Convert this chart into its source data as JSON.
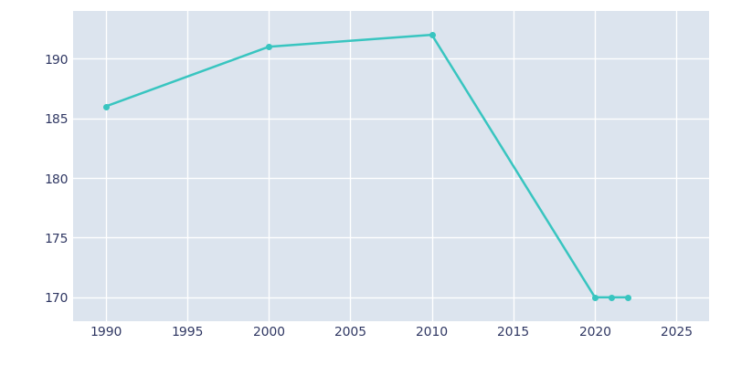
{
  "years": [
    1990,
    2000,
    2010,
    2020,
    2021,
    2022
  ],
  "population": [
    186,
    191,
    192,
    170,
    170,
    170
  ],
  "line_color": "#38c5c0",
  "marker": "o",
  "marker_size": 4,
  "line_width": 1.8,
  "bg_color": "#ffffff",
  "plot_bg_color": "#dce4ee",
  "grid_color": "#ffffff",
  "tick_color": "#2d3561",
  "xlim": [
    1988,
    2027
  ],
  "ylim": [
    168,
    194
  ],
  "xticks": [
    1990,
    1995,
    2000,
    2005,
    2010,
    2015,
    2020,
    2025
  ],
  "yticks": [
    170,
    175,
    180,
    185,
    190
  ]
}
